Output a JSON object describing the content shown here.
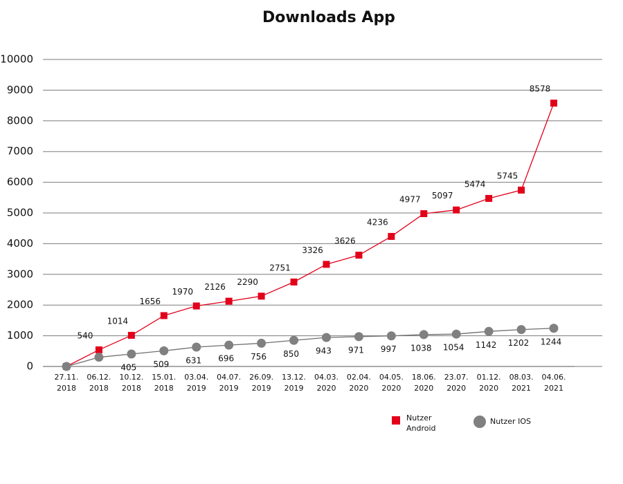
{
  "chart_data": {
    "type": "line",
    "title": "Downloads App",
    "categories": [
      "27.11.\n2018",
      "06.12.\n2018",
      "10.12.\n2018",
      "15.01.\n2018",
      "03.04.\n2019",
      "04.07.\n2019",
      "26.09.\n2019",
      "13.12.\n2019",
      "04.03.\n2020",
      "02.04.\n2020",
      "04.05.\n2020",
      "18.06.\n2020",
      "23.07.\n2020",
      "01.12.\n2020",
      "08.03.\n2021",
      "04.06.\n2021"
    ],
    "series": [
      {
        "name": "Nutzer Android",
        "color": "#e2001a",
        "marker": "square",
        "values": [
          0,
          540,
          1014,
          1656,
          1970,
          2126,
          2290,
          2751,
          3326,
          3626,
          4236,
          4977,
          5097,
          5474,
          5745,
          8578
        ],
        "value_labels": [
          null,
          "540",
          "1014",
          "1656",
          "1970",
          "2126",
          "2290",
          "2751",
          "3326",
          "3626",
          "4236",
          "4977",
          "5097",
          "5474",
          "5745",
          "8578"
        ]
      },
      {
        "name": "Nutzer IOS",
        "color": "#808080",
        "line_color": "#6e6e6e",
        "marker": "circle",
        "values": [
          0,
          300,
          405,
          509,
          631,
          696,
          756,
          850,
          943,
          971,
          997,
          1038,
          1054,
          1142,
          1202,
          1244
        ],
        "value_labels": [
          null,
          null,
          "405",
          "509",
          "631",
          "696",
          "756",
          "850",
          "943",
          "971",
          "997",
          "1038",
          "1054",
          "1142",
          "1202",
          "1244"
        ]
      }
    ],
    "ylim": [
      0,
      10000
    ],
    "yticks": [
      0,
      1000,
      2000,
      3000,
      4000,
      5000,
      6000,
      7000,
      8000,
      9000,
      10000
    ],
    "grid": true,
    "legend": "bottom-right"
  }
}
